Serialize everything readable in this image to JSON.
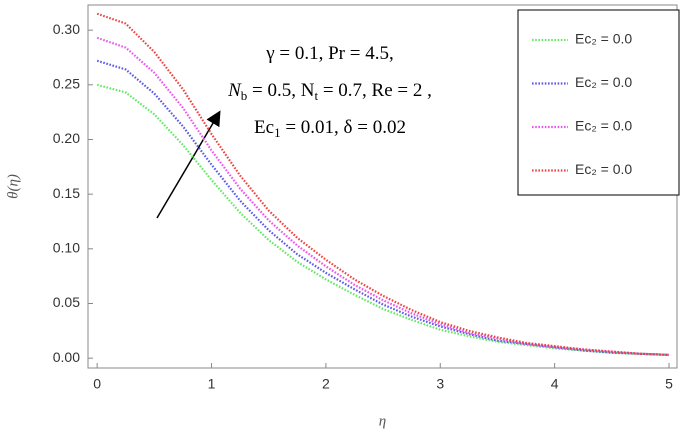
{
  "chart_data": {
    "type": "line",
    "x_label": "η",
    "y_label": "θ(η)",
    "x": [
      0,
      0.25,
      0.5,
      0.75,
      1,
      1.25,
      1.5,
      1.75,
      2,
      2.25,
      2.5,
      2.75,
      3,
      3.25,
      3.5,
      3.75,
      4,
      4.25,
      4.5,
      4.75,
      5
    ],
    "series": [
      {
        "name": "Ec₂ = 0.0",
        "color": "#66e866",
        "values": [
          0.25,
          0.243,
          0.223,
          0.195,
          0.163,
          0.133,
          0.108,
          0.088,
          0.072,
          0.058,
          0.045,
          0.035,
          0.026,
          0.02,
          0.015,
          0.012,
          0.009,
          0.007,
          0.005,
          0.004,
          0.003
        ]
      },
      {
        "name": "Ec₂ = 0.0",
        "color": "#5a5ae8",
        "values": [
          0.272,
          0.264,
          0.242,
          0.212,
          0.177,
          0.144,
          0.117,
          0.095,
          0.078,
          0.063,
          0.049,
          0.038,
          0.029,
          0.022,
          0.016,
          0.013,
          0.01,
          0.007,
          0.005,
          0.004,
          0.003
        ]
      },
      {
        "name": "Ec₂ = 0.0",
        "color": "#ee55ee",
        "values": [
          0.293,
          0.284,
          0.261,
          0.229,
          0.19,
          0.155,
          0.126,
          0.103,
          0.084,
          0.067,
          0.053,
          0.041,
          0.031,
          0.023,
          0.018,
          0.013,
          0.01,
          0.008,
          0.006,
          0.004,
          0.003
        ]
      },
      {
        "name": "Ec₂ = 0.0",
        "color": "#ee4444",
        "values": [
          0.315,
          0.306,
          0.28,
          0.246,
          0.205,
          0.167,
          0.135,
          0.11,
          0.09,
          0.072,
          0.057,
          0.044,
          0.033,
          0.025,
          0.019,
          0.014,
          0.011,
          0.008,
          0.006,
          0.004,
          0.003
        ]
      }
    ],
    "xlim": [
      -0.08,
      5.07
    ],
    "ylim": [
      -0.009,
      0.323
    ],
    "xticks": [
      0,
      1,
      2,
      3,
      4,
      5
    ],
    "yticks": [
      {
        "value": 0,
        "label": "0.00"
      },
      0.05,
      {
        "value": 0.1,
        "label": "0.10"
      },
      0.15,
      {
        "value": 0.2,
        "label": "0.20"
      },
      0.25,
      {
        "value": 0.3,
        "label": "0.30"
      }
    ],
    "legend": "upper right",
    "annotation": [
      [
        "γ = 0.1,  Pr = 4.5,"
      ],
      [
        "N",
        "b",
        " = 0.5, N",
        "t",
        " = 0.7, Re = 2 ,"
      ],
      [
        "Ec",
        "1",
        " = 0.01, δ = 0.02"
      ]
    ]
  }
}
